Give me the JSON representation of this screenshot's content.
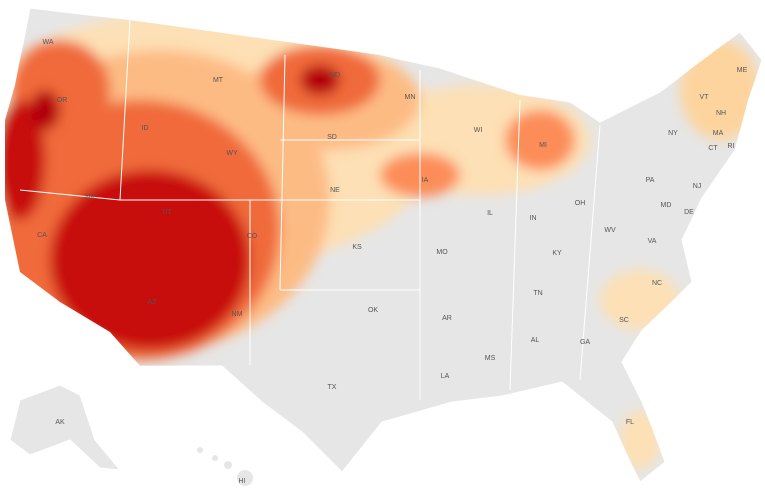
{
  "state_labels": [
    "WA",
    "OR",
    "CA",
    "NV",
    "ID",
    "MT",
    "WY",
    "UT",
    "AZ",
    "CO",
    "NM",
    "ND",
    "SD",
    "NE",
    "KS",
    "OK",
    "TX",
    "MN",
    "IA",
    "MO",
    "AR",
    "LA",
    "WI",
    "IL",
    "MI",
    "IN",
    "OH",
    "KY",
    "TN",
    "MS",
    "AL",
    "GA",
    "FL",
    "SC",
    "NC",
    "VA",
    "WV",
    "PA",
    "NY",
    "VT",
    "NH",
    "ME",
    "MA",
    "CT",
    "RI",
    "NJ",
    "DE",
    "MD",
    "AK",
    "HI"
  ]
}
